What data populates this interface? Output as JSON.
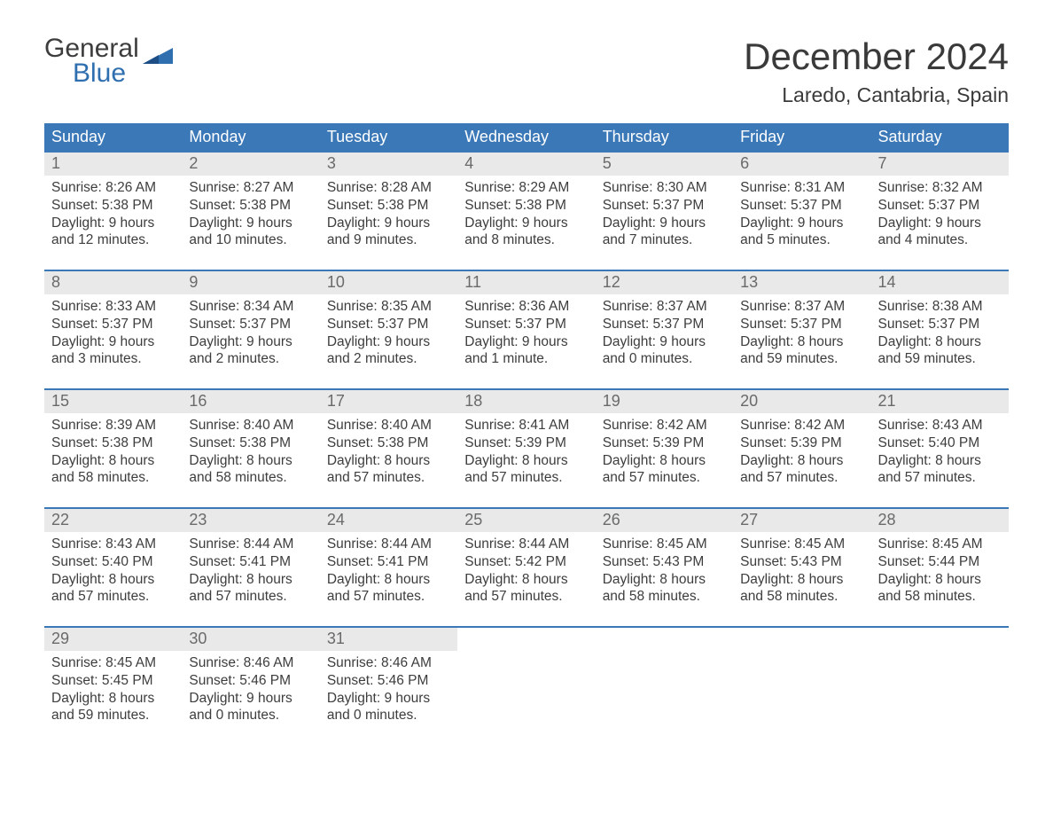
{
  "brand": {
    "line1": "General",
    "line2": "Blue"
  },
  "title": "December 2024",
  "location": "Laredo, Cantabria, Spain",
  "colors": {
    "header_bg": "#3b78b8",
    "header_text": "#ffffff",
    "daynum_bg": "#e9e9e9",
    "daynum_text": "#6a6a6a",
    "body_text": "#3d3d3d",
    "rule": "#3b78b8",
    "brand_blue": "#2f6fb0",
    "page_bg": "#ffffff"
  },
  "day_headers": [
    "Sunday",
    "Monday",
    "Tuesday",
    "Wednesday",
    "Thursday",
    "Friday",
    "Saturday"
  ],
  "days": [
    {
      "n": "1",
      "sunrise": "8:26 AM",
      "sunset": "5:38 PM",
      "dl1": "9 hours",
      "dl2": "and 12 minutes."
    },
    {
      "n": "2",
      "sunrise": "8:27 AM",
      "sunset": "5:38 PM",
      "dl1": "9 hours",
      "dl2": "and 10 minutes."
    },
    {
      "n": "3",
      "sunrise": "8:28 AM",
      "sunset": "5:38 PM",
      "dl1": "9 hours",
      "dl2": "and 9 minutes."
    },
    {
      "n": "4",
      "sunrise": "8:29 AM",
      "sunset": "5:38 PM",
      "dl1": "9 hours",
      "dl2": "and 8 minutes."
    },
    {
      "n": "5",
      "sunrise": "8:30 AM",
      "sunset": "5:37 PM",
      "dl1": "9 hours",
      "dl2": "and 7 minutes."
    },
    {
      "n": "6",
      "sunrise": "8:31 AM",
      "sunset": "5:37 PM",
      "dl1": "9 hours",
      "dl2": "and 5 minutes."
    },
    {
      "n": "7",
      "sunrise": "8:32 AM",
      "sunset": "5:37 PM",
      "dl1": "9 hours",
      "dl2": "and 4 minutes."
    },
    {
      "n": "8",
      "sunrise": "8:33 AM",
      "sunset": "5:37 PM",
      "dl1": "9 hours",
      "dl2": "and 3 minutes."
    },
    {
      "n": "9",
      "sunrise": "8:34 AM",
      "sunset": "5:37 PM",
      "dl1": "9 hours",
      "dl2": "and 2 minutes."
    },
    {
      "n": "10",
      "sunrise": "8:35 AM",
      "sunset": "5:37 PM",
      "dl1": "9 hours",
      "dl2": "and 2 minutes."
    },
    {
      "n": "11",
      "sunrise": "8:36 AM",
      "sunset": "5:37 PM",
      "dl1": "9 hours",
      "dl2": "and 1 minute."
    },
    {
      "n": "12",
      "sunrise": "8:37 AM",
      "sunset": "5:37 PM",
      "dl1": "9 hours",
      "dl2": "and 0 minutes."
    },
    {
      "n": "13",
      "sunrise": "8:37 AM",
      "sunset": "5:37 PM",
      "dl1": "8 hours",
      "dl2": "and 59 minutes."
    },
    {
      "n": "14",
      "sunrise": "8:38 AM",
      "sunset": "5:37 PM",
      "dl1": "8 hours",
      "dl2": "and 59 minutes."
    },
    {
      "n": "15",
      "sunrise": "8:39 AM",
      "sunset": "5:38 PM",
      "dl1": "8 hours",
      "dl2": "and 58 minutes."
    },
    {
      "n": "16",
      "sunrise": "8:40 AM",
      "sunset": "5:38 PM",
      "dl1": "8 hours",
      "dl2": "and 58 minutes."
    },
    {
      "n": "17",
      "sunrise": "8:40 AM",
      "sunset": "5:38 PM",
      "dl1": "8 hours",
      "dl2": "and 57 minutes."
    },
    {
      "n": "18",
      "sunrise": "8:41 AM",
      "sunset": "5:39 PM",
      "dl1": "8 hours",
      "dl2": "and 57 minutes."
    },
    {
      "n": "19",
      "sunrise": "8:42 AM",
      "sunset": "5:39 PM",
      "dl1": "8 hours",
      "dl2": "and 57 minutes."
    },
    {
      "n": "20",
      "sunrise": "8:42 AM",
      "sunset": "5:39 PM",
      "dl1": "8 hours",
      "dl2": "and 57 minutes."
    },
    {
      "n": "21",
      "sunrise": "8:43 AM",
      "sunset": "5:40 PM",
      "dl1": "8 hours",
      "dl2": "and 57 minutes."
    },
    {
      "n": "22",
      "sunrise": "8:43 AM",
      "sunset": "5:40 PM",
      "dl1": "8 hours",
      "dl2": "and 57 minutes."
    },
    {
      "n": "23",
      "sunrise": "8:44 AM",
      "sunset": "5:41 PM",
      "dl1": "8 hours",
      "dl2": "and 57 minutes."
    },
    {
      "n": "24",
      "sunrise": "8:44 AM",
      "sunset": "5:41 PM",
      "dl1": "8 hours",
      "dl2": "and 57 minutes."
    },
    {
      "n": "25",
      "sunrise": "8:44 AM",
      "sunset": "5:42 PM",
      "dl1": "8 hours",
      "dl2": "and 57 minutes."
    },
    {
      "n": "26",
      "sunrise": "8:45 AM",
      "sunset": "5:43 PM",
      "dl1": "8 hours",
      "dl2": "and 58 minutes."
    },
    {
      "n": "27",
      "sunrise": "8:45 AM",
      "sunset": "5:43 PM",
      "dl1": "8 hours",
      "dl2": "and 58 minutes."
    },
    {
      "n": "28",
      "sunrise": "8:45 AM",
      "sunset": "5:44 PM",
      "dl1": "8 hours",
      "dl2": "and 58 minutes."
    },
    {
      "n": "29",
      "sunrise": "8:45 AM",
      "sunset": "5:45 PM",
      "dl1": "8 hours",
      "dl2": "and 59 minutes."
    },
    {
      "n": "30",
      "sunrise": "8:46 AM",
      "sunset": "5:46 PM",
      "dl1": "9 hours",
      "dl2": "and 0 minutes."
    },
    {
      "n": "31",
      "sunrise": "8:46 AM",
      "sunset": "5:46 PM",
      "dl1": "9 hours",
      "dl2": "and 0 minutes."
    }
  ],
  "labels": {
    "sunrise": "Sunrise: ",
    "sunset": "Sunset: ",
    "daylight": "Daylight: "
  },
  "layout": {
    "start_offset": 0,
    "total_cells": 35
  }
}
